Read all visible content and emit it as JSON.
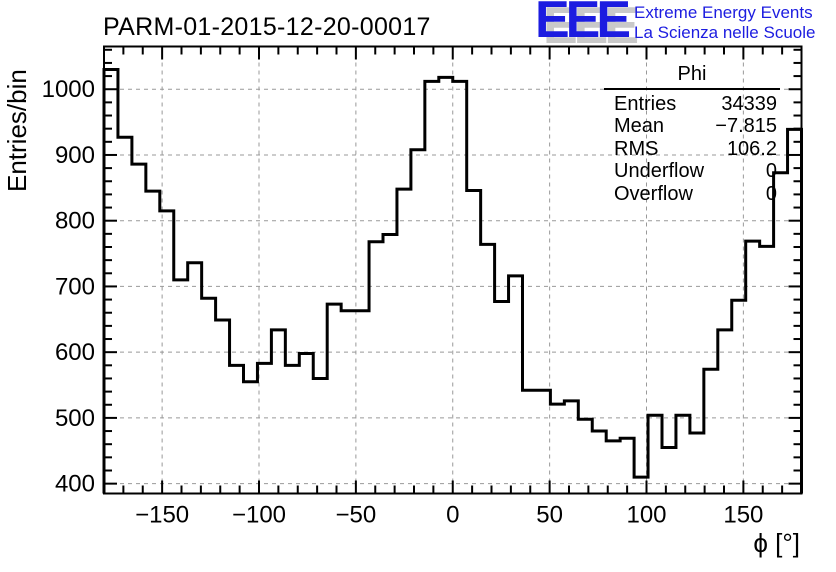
{
  "header": {
    "logo": {
      "acronym": "EEE",
      "line1": "Extreme Energy Events",
      "line2": "La Scienza nelle Scuole",
      "color": "#1c1ce0",
      "shadow_color": "#c9c9c9"
    }
  },
  "stats_box": {
    "title": "Phi",
    "rows": [
      {
        "label": "Entries",
        "value": "34339"
      },
      {
        "label": "Mean",
        "value": "−7.815"
      },
      {
        "label": "RMS",
        "value": "106.2"
      },
      {
        "label": "Underflow",
        "value": "0"
      },
      {
        "label": "Overflow",
        "value": "0"
      }
    ]
  },
  "chart_data": {
    "type": "bar",
    "subtype": "histogram-step",
    "title": "PARM-01-2015-12-20-00017",
    "xlabel": "ϕ [°]",
    "ylabel": "Entries/bin",
    "xlim": [
      -180,
      180
    ],
    "ylim": [
      385,
      1065
    ],
    "x_major_ticks": [
      -150,
      -100,
      -50,
      0,
      50,
      100,
      150
    ],
    "x_minor_step": 10,
    "y_major_ticks": [
      400,
      500,
      600,
      700,
      800,
      900,
      1000
    ],
    "y_minor_step": 20,
    "grid": "dashed gray lines on major ticks, both axes",
    "legend_position": "none",
    "bin_count": 50,
    "bin_start": -180,
    "bin_width": 7.2,
    "values": [
      1030,
      927,
      886,
      845,
      815,
      710,
      736,
      682,
      649,
      580,
      555,
      583,
      634,
      580,
      598,
      560,
      673,
      663,
      663,
      768,
      779,
      848,
      908,
      1012,
      1018,
      1012,
      846,
      764,
      677,
      716,
      542,
      542,
      521,
      526,
      498,
      480,
      465,
      469,
      410,
      504,
      455,
      504,
      477,
      574,
      634,
      679,
      769,
      761,
      873,
      939
    ],
    "line_color": "#000000",
    "grid_color": "#999999",
    "axis_color": "#000000",
    "entries_total": 34339
  }
}
